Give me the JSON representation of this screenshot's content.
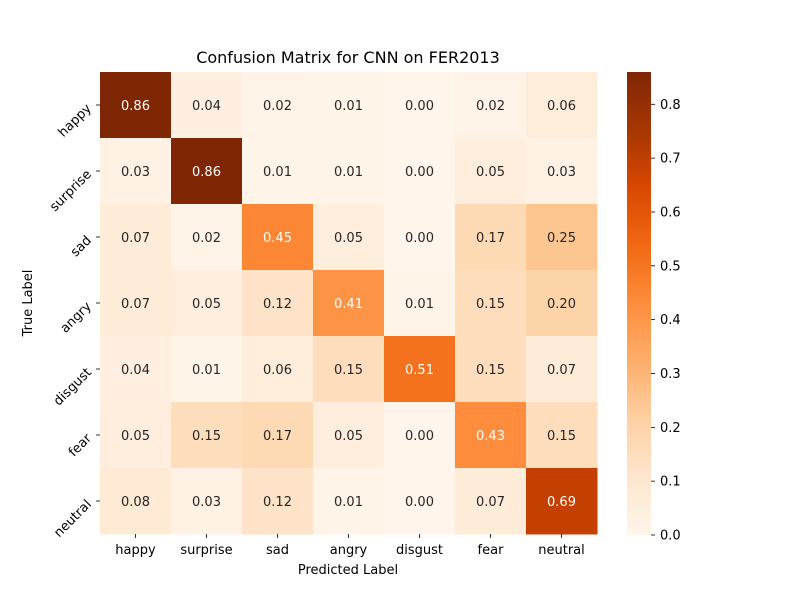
{
  "chart_data": {
    "type": "heatmap",
    "title": "Confusion Matrix for CNN on FER2013",
    "xlabel": "Predicted Label",
    "ylabel": "True Label",
    "x_categories": [
      "happy",
      "surprise",
      "sad",
      "angry",
      "disgust",
      "fear",
      "neutral"
    ],
    "y_categories": [
      "happy",
      "surprise",
      "sad",
      "angry",
      "disgust",
      "fear",
      "neutral"
    ],
    "values": [
      [
        0.86,
        0.04,
        0.02,
        0.01,
        0.0,
        0.02,
        0.06
      ],
      [
        0.03,
        0.86,
        0.01,
        0.01,
        0.0,
        0.05,
        0.03
      ],
      [
        0.07,
        0.02,
        0.45,
        0.05,
        0.0,
        0.17,
        0.25
      ],
      [
        0.07,
        0.05,
        0.12,
        0.41,
        0.01,
        0.15,
        0.2
      ],
      [
        0.04,
        0.01,
        0.06,
        0.15,
        0.51,
        0.15,
        0.07
      ],
      [
        0.05,
        0.15,
        0.17,
        0.05,
        0.0,
        0.43,
        0.15
      ],
      [
        0.08,
        0.03,
        0.12,
        0.01,
        0.0,
        0.07,
        0.69
      ]
    ],
    "colormap": "Oranges",
    "vmin": 0.0,
    "vmax": 0.86,
    "colorbar_ticks": [
      "0.0",
      "0.1",
      "0.2",
      "0.3",
      "0.4",
      "0.5",
      "0.6",
      "0.7",
      "0.8"
    ],
    "colorbar_tick_values": [
      0.0,
      0.1,
      0.2,
      0.3,
      0.4,
      0.5,
      0.6,
      0.7,
      0.8
    ],
    "grid": false,
    "legend": "colorbar-right"
  }
}
